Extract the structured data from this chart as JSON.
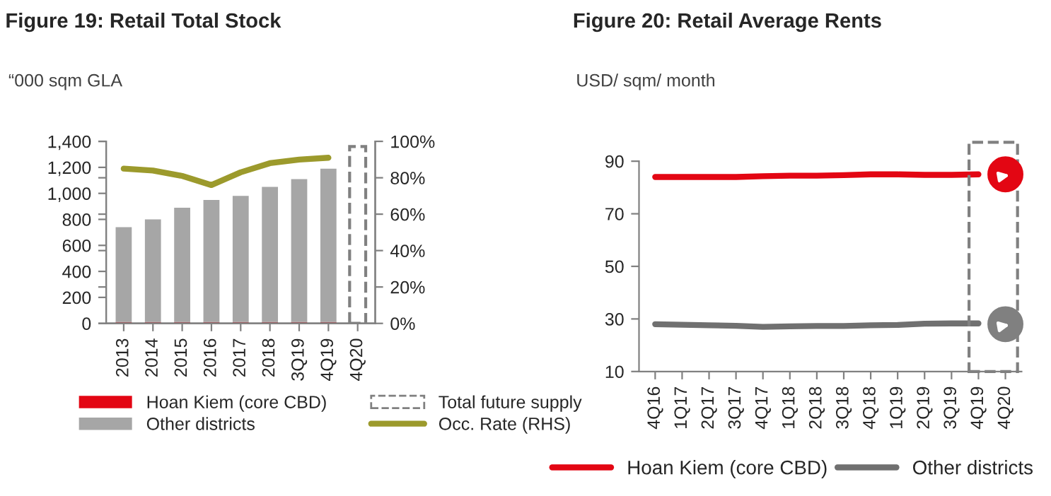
{
  "chart_data": [
    {
      "type": "bar",
      "title": "Figure 19: Retail Total Stock",
      "subtitle": "“000 sqm GLA",
      "stacked": true,
      "categories": [
        "2013",
        "2014",
        "2015",
        "2016",
        "2017",
        "2018",
        "3Q19",
        "4Q19",
        "4Q20"
      ],
      "ylim": [
        0,
        1400
      ],
      "yticks": [
        0,
        200,
        400,
        600,
        800,
        {
          "value": 1000,
          "label": "1,000"
        },
        {
          "value": 1200,
          "label": "1,200"
        },
        {
          "value": 1400,
          "label": "1,400"
        }
      ],
      "y2lim": [
        0,
        100
      ],
      "y2ticks": [
        {
          "value": 0,
          "label": "0%"
        },
        {
          "value": 20,
          "label": "20%"
        },
        {
          "value": 40,
          "label": "40%"
        },
        {
          "value": 60,
          "label": "60%"
        },
        {
          "value": 80,
          "label": "80%"
        },
        {
          "value": 100,
          "label": "100%"
        }
      ],
      "legend": "bottom",
      "grid": false,
      "series": [
        {
          "name": "Hoan Kiem (core CBD)",
          "color": "#e30613",
          "values": [
            10,
            10,
            10,
            10,
            10,
            10,
            10,
            10,
            null
          ]
        },
        {
          "name": "Other districts",
          "color": "#a6a6a6",
          "values": [
            730,
            790,
            880,
            940,
            970,
            1040,
            1100,
            1180,
            null
          ]
        },
        {
          "name": "Total future supply",
          "color": "#808080",
          "line_style": "dashed",
          "values": [
            null,
            null,
            null,
            null,
            null,
            null,
            null,
            null,
            1360
          ]
        },
        {
          "name": "Occ. Rate (RHS)",
          "type": "line",
          "axis": "y2",
          "color": "#9c9a2c",
          "values": [
            85,
            84,
            81,
            76,
            83,
            88,
            90,
            91,
            null
          ]
        }
      ]
    },
    {
      "type": "line",
      "title": "Figure 20: Retail Average Rents",
      "subtitle": "USD/ sqm/ month",
      "categories": [
        "4Q16",
        "1Q17",
        "2Q17",
        "3Q17",
        "4Q17",
        "1Q18",
        "2Q18",
        "3Q18",
        "4Q18",
        "1Q19",
        "2Q19",
        "3Q19",
        "4Q19",
        "4Q20"
      ],
      "ylim": [
        10,
        90
      ],
      "yticks": [
        10,
        30,
        50,
        70,
        90
      ],
      "legend": "bottom",
      "grid": false,
      "series": [
        {
          "name": "Hoan Kiem (core CBD)",
          "color": "#e30613",
          "values": [
            84,
            84,
            84,
            84,
            84.3,
            84.5,
            84.5,
            84.7,
            85,
            85,
            84.8,
            84.8,
            85,
            null
          ]
        },
        {
          "name": "Other districts",
          "color": "#707070",
          "values": [
            28,
            27.8,
            27.6,
            27.4,
            27,
            27.2,
            27.3,
            27.3,
            27.6,
            27.7,
            28.2,
            28.3,
            28.3,
            null
          ]
        },
        {
          "type": "scatter",
          "color": "#e30613",
          "marker": "circle",
          "values": [
            null,
            null,
            null,
            null,
            null,
            null,
            null,
            null,
            null,
            null,
            null,
            null,
            null,
            85
          ]
        },
        {
          "type": "scatter",
          "color": "#808080",
          "marker": "circle",
          "values": [
            null,
            null,
            null,
            null,
            null,
            null,
            null,
            null,
            null,
            null,
            null,
            null,
            null,
            28
          ]
        }
      ]
    }
  ]
}
